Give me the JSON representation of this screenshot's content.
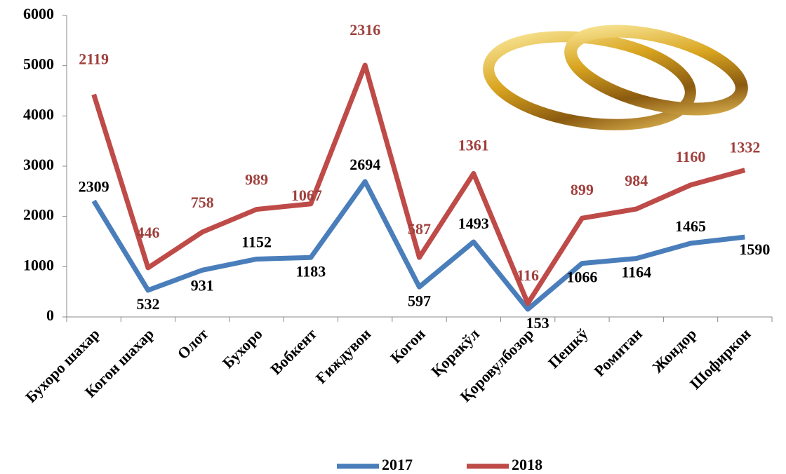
{
  "chart_data": {
    "type": "stacked-line",
    "categories": [
      "Бухоро шахар",
      "Когон шахар",
      "Олот",
      "Бухоро",
      "Вобкент",
      "Ғиждувон",
      "Когон",
      "Қоракўл",
      "Қоровулбозор",
      "Пешкў",
      "Ромитан",
      "Жондор",
      "Шофиркон"
    ],
    "series": [
      {
        "name": "2017",
        "color": "#4a7ebb",
        "values": [
          2309,
          532,
          931,
          1152,
          1183,
          2694,
          597,
          1493,
          153,
          1066,
          1164,
          1465,
          1590
        ]
      },
      {
        "name": "2018",
        "color": "#be4b48",
        "values": [
          2119,
          446,
          758,
          989,
          1067,
          2316,
          587,
          1361,
          116,
          899,
          984,
          1160,
          1332
        ]
      }
    ],
    "ylim": [
      0,
      6000
    ],
    "yticks": [
      0,
      1000,
      2000,
      3000,
      4000,
      5000,
      6000
    ],
    "legend": "bottom"
  }
}
